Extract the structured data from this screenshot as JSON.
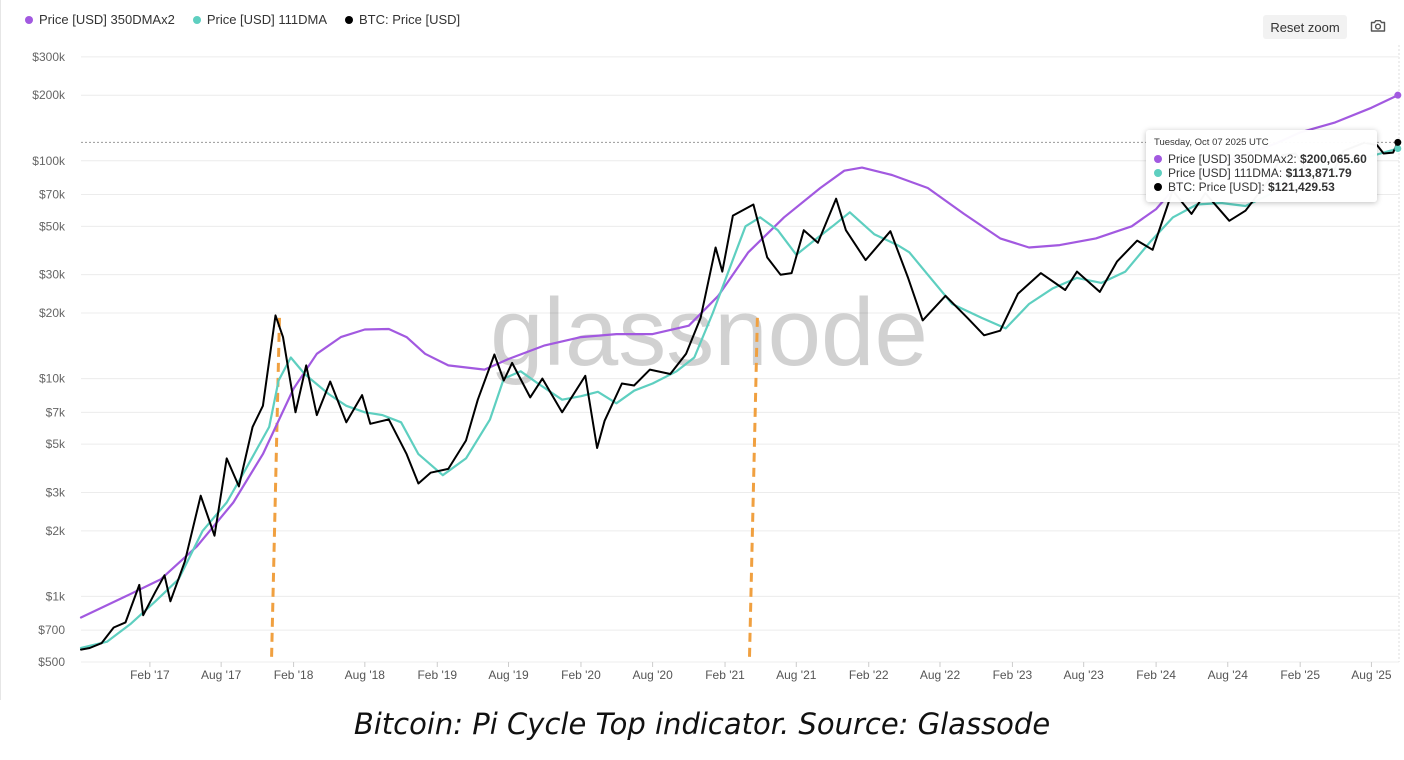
{
  "legend": [
    {
      "label": "Price [USD] 350DMAx2",
      "color": "#a259e0"
    },
    {
      "label": "Price [USD] 111DMA",
      "color": "#5ecfc0"
    },
    {
      "label": "BTC: Price [USD]",
      "color": "#000000"
    }
  ],
  "toolbar": {
    "reset_label": "Reset zoom",
    "camera_icon": "camera-icon"
  },
  "watermark": "glassnode",
  "tooltip": {
    "date": "Tuesday, Oct 07 2025 UTC",
    "rows": [
      {
        "label": "Price [USD] 350DMAx2: ",
        "value": "$200,065.60",
        "color": "#a259e0"
      },
      {
        "label": "Price [USD] 111DMA: ",
        "value": "$113,871.79",
        "color": "#5ecfc0"
      },
      {
        "label": "BTC: Price [USD]: ",
        "value": "$121,429.53",
        "color": "#000000"
      }
    ]
  },
  "caption": "Bitcoin: Pi Cycle Top indicator. Source: Glassode",
  "chart_data": {
    "type": "line",
    "y_scale": "log",
    "ylim": [
      500,
      340000
    ],
    "xlim": [
      "2016-08-10",
      "2025-10-10"
    ],
    "y_ticks": [
      {
        "label": "$300k",
        "value": 300000
      },
      {
        "label": "$200k",
        "value": 200000
      },
      {
        "label": "$100k",
        "value": 100000
      },
      {
        "label": "$70k",
        "value": 70000
      },
      {
        "label": "$50k",
        "value": 50000
      },
      {
        "label": "$30k",
        "value": 30000
      },
      {
        "label": "$20k",
        "value": 20000
      },
      {
        "label": "$10k",
        "value": 10000
      },
      {
        "label": "$7k",
        "value": 7000
      },
      {
        "label": "$5k",
        "value": 5000
      },
      {
        "label": "$3k",
        "value": 3000
      },
      {
        "label": "$2k",
        "value": 2000
      },
      {
        "label": "$1k",
        "value": 1000
      },
      {
        "label": "$700",
        "value": 700
      },
      {
        "label": "$500",
        "value": 500
      }
    ],
    "x_ticks": [
      {
        "label": "Feb '17",
        "date": "2017-02-01"
      },
      {
        "label": "Aug '17",
        "date": "2017-08-01"
      },
      {
        "label": "Feb '18",
        "date": "2018-02-01"
      },
      {
        "label": "Aug '18",
        "date": "2018-08-01"
      },
      {
        "label": "Feb '19",
        "date": "2019-02-01"
      },
      {
        "label": "Aug '19",
        "date": "2019-08-01"
      },
      {
        "label": "Feb '20",
        "date": "2020-02-01"
      },
      {
        "label": "Aug '20",
        "date": "2020-08-01"
      },
      {
        "label": "Feb '21",
        "date": "2021-02-01"
      },
      {
        "label": "Aug '21",
        "date": "2021-08-01"
      },
      {
        "label": "Feb '22",
        "date": "2022-02-01"
      },
      {
        "label": "Aug '22",
        "date": "2022-08-01"
      },
      {
        "label": "Feb '23",
        "date": "2023-02-01"
      },
      {
        "label": "Aug '23",
        "date": "2023-08-01"
      },
      {
        "label": "Feb '24",
        "date": "2024-02-01"
      },
      {
        "label": "Aug '24",
        "date": "2024-08-01"
      },
      {
        "label": "Feb '25",
        "date": "2025-02-01"
      },
      {
        "label": "Aug '25",
        "date": "2025-08-01"
      }
    ],
    "crosshair": {
      "date": "2025-10-07",
      "value": 121429.53
    },
    "cross_markers": [
      {
        "date": "2017-12-17"
      },
      {
        "date": "2021-04-14"
      }
    ],
    "series": [
      {
        "name": "Price [USD] 350DMAx2",
        "color": "#a259e0",
        "points": [
          [
            "2016-08-10",
            800
          ],
          [
            "2016-12-01",
            1000
          ],
          [
            "2017-03-01",
            1200
          ],
          [
            "2017-06-01",
            1700
          ],
          [
            "2017-09-01",
            2700
          ],
          [
            "2017-11-15",
            4500
          ],
          [
            "2018-02-01",
            9000
          ],
          [
            "2018-04-01",
            13000
          ],
          [
            "2018-06-01",
            15500
          ],
          [
            "2018-08-01",
            16800
          ],
          [
            "2018-10-01",
            16900
          ],
          [
            "2018-11-15",
            15500
          ],
          [
            "2019-01-01",
            13000
          ],
          [
            "2019-03-01",
            11500
          ],
          [
            "2019-06-01",
            11000
          ],
          [
            "2019-08-01",
            12300
          ],
          [
            "2019-11-01",
            14200
          ],
          [
            "2020-02-01",
            15500
          ],
          [
            "2020-05-01",
            16000
          ],
          [
            "2020-08-01",
            16000
          ],
          [
            "2020-11-01",
            17500
          ],
          [
            "2021-01-15",
            24000
          ],
          [
            "2021-04-01",
            38000
          ],
          [
            "2021-07-01",
            55000
          ],
          [
            "2021-10-01",
            75000
          ],
          [
            "2021-12-01",
            90000
          ],
          [
            "2022-01-15",
            93000
          ],
          [
            "2022-04-01",
            86000
          ],
          [
            "2022-07-01",
            75000
          ],
          [
            "2022-10-01",
            57000
          ],
          [
            "2023-01-01",
            44000
          ],
          [
            "2023-03-15",
            40000
          ],
          [
            "2023-06-01",
            41000
          ],
          [
            "2023-09-01",
            44000
          ],
          [
            "2023-12-01",
            50000
          ],
          [
            "2024-02-01",
            60000
          ],
          [
            "2024-04-01",
            80000
          ],
          [
            "2024-08-01",
            100000
          ],
          [
            "2024-12-01",
            120000
          ],
          [
            "2025-02-01",
            135000
          ],
          [
            "2025-05-01",
            150000
          ],
          [
            "2025-08-01",
            175000
          ],
          [
            "2025-10-07",
            200065.6
          ]
        ]
      },
      {
        "name": "Price [USD] 111DMA",
        "color": "#5ecfc0",
        "points": [
          [
            "2016-08-10",
            580
          ],
          [
            "2016-10-15",
            620
          ],
          [
            "2016-12-15",
            750
          ],
          [
            "2017-02-15",
            950
          ],
          [
            "2017-04-15",
            1200
          ],
          [
            "2017-06-15",
            2000
          ],
          [
            "2017-08-15",
            2700
          ],
          [
            "2017-10-01",
            3800
          ],
          [
            "2017-12-01",
            6000
          ],
          [
            "2017-12-25",
            9800
          ],
          [
            "2018-01-25",
            12500
          ],
          [
            "2018-03-01",
            10500
          ],
          [
            "2018-05-01",
            8500
          ],
          [
            "2018-06-15",
            7500
          ],
          [
            "2018-08-01",
            7000
          ],
          [
            "2018-09-15",
            6800
          ],
          [
            "2018-11-01",
            6300
          ],
          [
            "2018-12-15",
            4500
          ],
          [
            "2019-02-15",
            3600
          ],
          [
            "2019-04-15",
            4300
          ],
          [
            "2019-06-15",
            6500
          ],
          [
            "2019-07-20",
            10000
          ],
          [
            "2019-09-01",
            10800
          ],
          [
            "2019-10-15",
            9500
          ],
          [
            "2019-12-15",
            8000
          ],
          [
            "2020-02-01",
            8300
          ],
          [
            "2020-03-15",
            8700
          ],
          [
            "2020-05-01",
            7700
          ],
          [
            "2020-06-15",
            8800
          ],
          [
            "2020-08-01",
            9500
          ],
          [
            "2020-10-01",
            10800
          ],
          [
            "2020-11-15",
            12500
          ],
          [
            "2021-01-01",
            20000
          ],
          [
            "2021-02-15",
            33000
          ],
          [
            "2021-03-25",
            50000
          ],
          [
            "2021-05-01",
            55000
          ],
          [
            "2021-06-15",
            48000
          ],
          [
            "2021-08-01",
            37000
          ],
          [
            "2021-09-15",
            43000
          ],
          [
            "2021-11-01",
            50000
          ],
          [
            "2021-12-15",
            58000
          ],
          [
            "2022-02-15",
            46000
          ],
          [
            "2022-04-15",
            41000
          ],
          [
            "2022-05-15",
            38000
          ],
          [
            "2022-07-01",
            30000
          ],
          [
            "2022-09-01",
            22000
          ],
          [
            "2022-11-15",
            19000
          ],
          [
            "2023-01-15",
            17000
          ],
          [
            "2023-03-15",
            22000
          ],
          [
            "2023-05-15",
            26000
          ],
          [
            "2023-07-15",
            29000
          ],
          [
            "2023-09-15",
            27500
          ],
          [
            "2023-11-15",
            31000
          ],
          [
            "2024-01-15",
            42000
          ],
          [
            "2024-03-15",
            55000
          ],
          [
            "2024-05-15",
            63000
          ],
          [
            "2024-07-15",
            64000
          ],
          [
            "2024-09-15",
            62000
          ],
          [
            "2024-11-15",
            70000
          ],
          [
            "2025-01-15",
            92000
          ],
          [
            "2025-03-15",
            97000
          ],
          [
            "2025-05-15",
            90000
          ],
          [
            "2025-07-15",
            103000
          ],
          [
            "2025-10-07",
            113871.79
          ]
        ]
      },
      {
        "name": "BTC: Price [USD]",
        "color": "#000000",
        "points": [
          [
            "2016-08-10",
            570
          ],
          [
            "2016-09-01",
            580
          ],
          [
            "2016-10-01",
            610
          ],
          [
            "2016-11-01",
            720
          ],
          [
            "2016-12-01",
            760
          ],
          [
            "2017-01-05",
            1130
          ],
          [
            "2017-01-15",
            820
          ],
          [
            "2017-02-15",
            1050
          ],
          [
            "2017-03-10",
            1250
          ],
          [
            "2017-03-25",
            950
          ],
          [
            "2017-05-01",
            1450
          ],
          [
            "2017-06-10",
            2900
          ],
          [
            "2017-07-15",
            1900
          ],
          [
            "2017-08-15",
            4300
          ],
          [
            "2017-09-15",
            3200
          ],
          [
            "2017-10-20",
            6000
          ],
          [
            "2017-11-15",
            7500
          ],
          [
            "2017-12-17",
            19500
          ],
          [
            "2018-01-05",
            15500
          ],
          [
            "2018-02-06",
            7000
          ],
          [
            "2018-03-05",
            11500
          ],
          [
            "2018-04-01",
            6800
          ],
          [
            "2018-05-05",
            9700
          ],
          [
            "2018-06-15",
            6300
          ],
          [
            "2018-07-25",
            8400
          ],
          [
            "2018-08-15",
            6200
          ],
          [
            "2018-10-01",
            6500
          ],
          [
            "2018-11-15",
            4500
          ],
          [
            "2018-12-15",
            3300
          ],
          [
            "2019-01-15",
            3700
          ],
          [
            "2019-03-01",
            3850
          ],
          [
            "2019-04-15",
            5200
          ],
          [
            "2019-05-15",
            8000
          ],
          [
            "2019-06-26",
            12900
          ],
          [
            "2019-07-20",
            9800
          ],
          [
            "2019-08-10",
            11800
          ],
          [
            "2019-09-25",
            8200
          ],
          [
            "2019-10-26",
            10000
          ],
          [
            "2019-12-15",
            7000
          ],
          [
            "2020-02-12",
            10300
          ],
          [
            "2020-03-13",
            4800
          ],
          [
            "2020-04-01",
            6400
          ],
          [
            "2020-05-15",
            9500
          ],
          [
            "2020-06-15",
            9300
          ],
          [
            "2020-07-25",
            11000
          ],
          [
            "2020-09-15",
            10500
          ],
          [
            "2020-10-25",
            13000
          ],
          [
            "2020-12-01",
            19000
          ],
          [
            "2021-01-08",
            40000
          ],
          [
            "2021-01-25",
            31000
          ],
          [
            "2021-02-21",
            56000
          ],
          [
            "2021-04-14",
            63000
          ],
          [
            "2021-05-19",
            36000
          ],
          [
            "2021-06-22",
            30000
          ],
          [
            "2021-07-20",
            30500
          ],
          [
            "2021-08-20",
            48000
          ],
          [
            "2021-09-25",
            42000
          ],
          [
            "2021-11-10",
            67000
          ],
          [
            "2021-12-05",
            48000
          ],
          [
            "2022-01-24",
            35000
          ],
          [
            "2022-03-28",
            47500
          ],
          [
            "2022-05-12",
            29000
          ],
          [
            "2022-06-18",
            18500
          ],
          [
            "2022-08-15",
            24000
          ],
          [
            "2022-10-10",
            19000
          ],
          [
            "2022-11-21",
            15800
          ],
          [
            "2023-01-01",
            16600
          ],
          [
            "2023-02-15",
            24500
          ],
          [
            "2023-04-14",
            30500
          ],
          [
            "2023-06-15",
            25500
          ],
          [
            "2023-07-15",
            31000
          ],
          [
            "2023-09-11",
            25000
          ],
          [
            "2023-10-25",
            34500
          ],
          [
            "2023-12-15",
            43000
          ],
          [
            "2024-01-23",
            39000
          ],
          [
            "2024-03-14",
            73000
          ],
          [
            "2024-05-01",
            57000
          ],
          [
            "2024-06-05",
            71000
          ],
          [
            "2024-08-05",
            53000
          ],
          [
            "2024-09-15",
            59000
          ],
          [
            "2024-11-10",
            80000
          ],
          [
            "2024-12-17",
            106000
          ],
          [
            "2025-01-20",
            108000
          ],
          [
            "2025-02-28",
            84000
          ],
          [
            "2025-04-08",
            76000
          ],
          [
            "2025-05-22",
            111000
          ],
          [
            "2025-07-14",
            121000
          ],
          [
            "2025-08-15",
            118000
          ],
          [
            "2025-09-01",
            108000
          ],
          [
            "2025-09-25",
            109000
          ],
          [
            "2025-10-07",
            121429.53
          ]
        ]
      }
    ]
  }
}
